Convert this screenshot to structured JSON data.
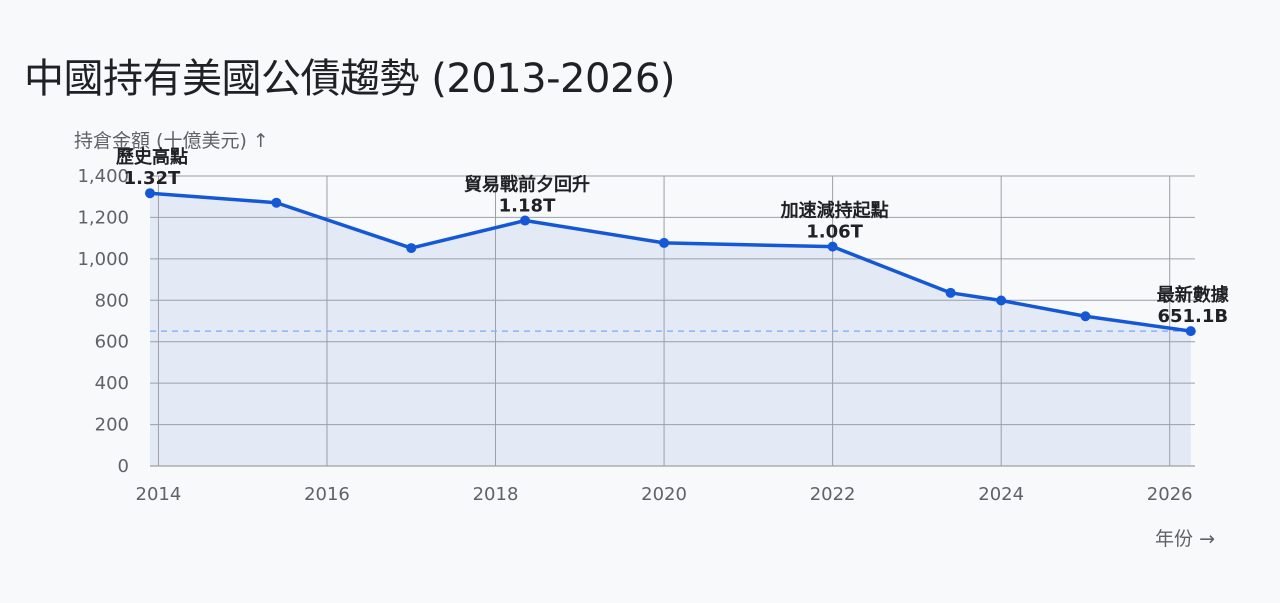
{
  "chart_data": {
    "type": "area",
    "title": "中國持有美國公債趨勢 (2013-2026)",
    "ylabel": "持倉金額 (十億美元)",
    "ylabel_arrow": "↑",
    "xlabel": "年份",
    "xlabel_arrow": "→",
    "xlim": [
      2013.9,
      2026.3
    ],
    "ylim": [
      0,
      1400
    ],
    "x_ticks": [
      "2014",
      "2016",
      "2018",
      "2020",
      "2022",
      "2024",
      "2026"
    ],
    "y_ticks": [
      "0",
      "200",
      "400",
      "600",
      "800",
      "1,000",
      "1,200",
      "1,400"
    ],
    "grid": true,
    "series": [
      {
        "points": [
          {
            "x": 2013.9,
            "y": 1317
          },
          {
            "x": 2015.4,
            "y": 1271
          },
          {
            "x": 2017.0,
            "y": 1052
          },
          {
            "x": 2018.35,
            "y": 1185
          },
          {
            "x": 2020.0,
            "y": 1077
          },
          {
            "x": 2022.0,
            "y": 1059
          },
          {
            "x": 2023.4,
            "y": 836
          },
          {
            "x": 2024.0,
            "y": 799
          },
          {
            "x": 2025.0,
            "y": 723
          },
          {
            "x": 2026.25,
            "y": 651.1
          }
        ]
      }
    ],
    "reference_line": {
      "y": 651.1,
      "style": "dashed"
    },
    "annotations": [
      {
        "x": 2013.9,
        "y": 1317,
        "label": "歷史高點",
        "value": "1.32T"
      },
      {
        "x": 2018.35,
        "y": 1185,
        "label": "貿易戰前夕回升",
        "value": "1.18T"
      },
      {
        "x": 2022.0,
        "y": 1059,
        "label": "加速減持起點",
        "value": "1.06T"
      },
      {
        "x": 2026.25,
        "y": 651.1,
        "label": "最新數據",
        "value": "651.1B"
      }
    ],
    "colors": {
      "line": "#1558d6",
      "fill": "#e4e9f6",
      "grid": "#9aa0a6",
      "ref": "#8ab4f8"
    }
  }
}
